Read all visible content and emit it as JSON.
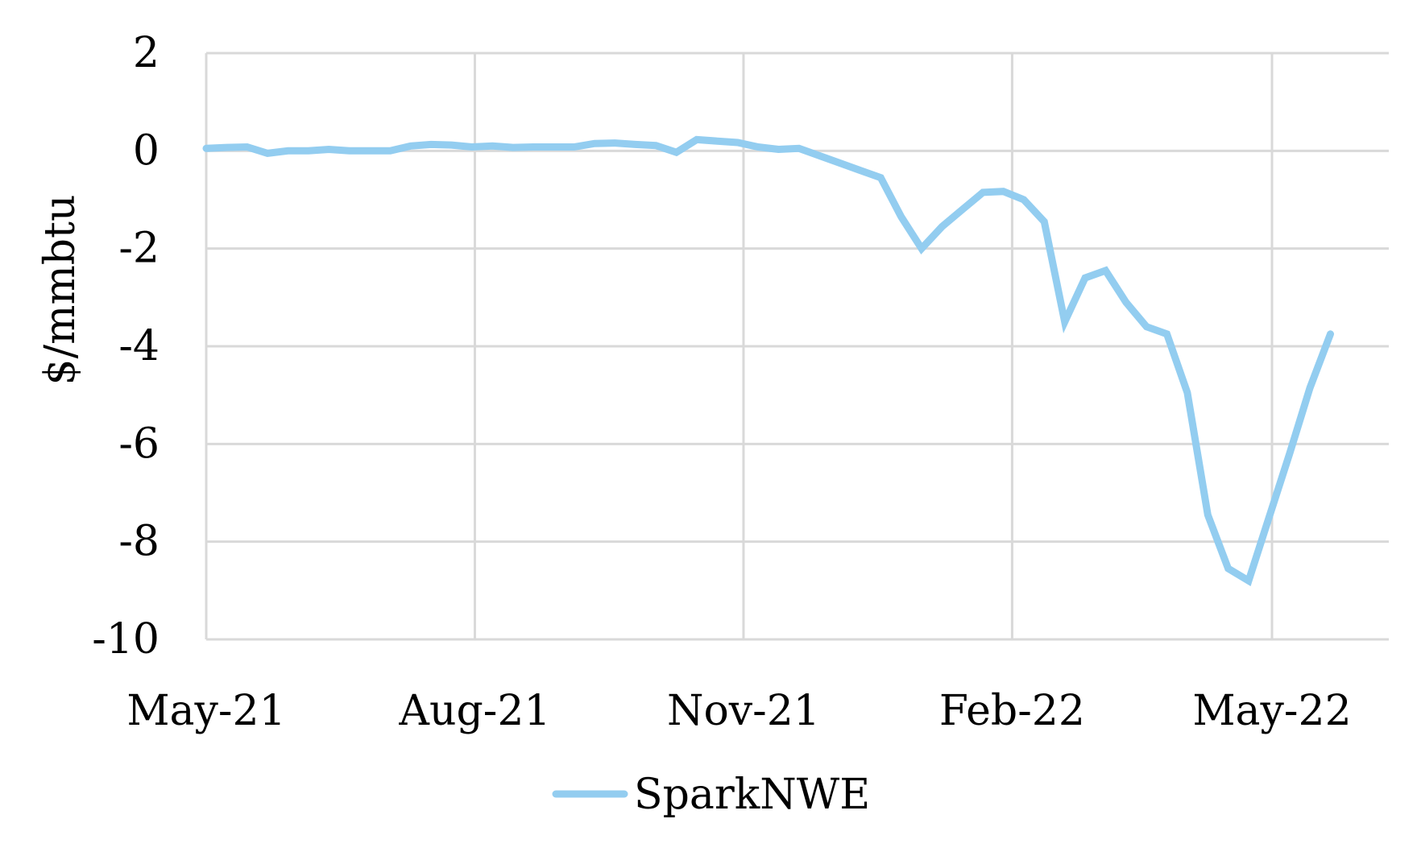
{
  "chart_data": {
    "type": "line",
    "title": "",
    "xlabel": "",
    "ylabel": "$/mmbtu",
    "ylim": [
      -10,
      2
    ],
    "yticks": [
      2,
      0,
      -2,
      -4,
      -6,
      -8,
      -10
    ],
    "xlim": [
      "2021-05-01",
      "2022-06-10"
    ],
    "xticks": [
      {
        "date": "2021-05-01",
        "label": "May-21"
      },
      {
        "date": "2021-08-01",
        "label": "Aug-21"
      },
      {
        "date": "2021-11-01",
        "label": "Nov-21"
      },
      {
        "date": "2022-02-01",
        "label": "Feb-22"
      },
      {
        "date": "2022-05-01",
        "label": "May-22"
      }
    ],
    "grid": true,
    "legend_position": "bottom",
    "series": [
      {
        "name": "SparkNWE",
        "color": "#93cdf0",
        "points": [
          [
            "2021-05-01",
            0.05
          ],
          [
            "2021-05-08",
            0.07
          ],
          [
            "2021-05-15",
            0.08
          ],
          [
            "2021-05-22",
            -0.05
          ],
          [
            "2021-05-29",
            0.0
          ],
          [
            "2021-06-05",
            0.0
          ],
          [
            "2021-06-12",
            0.03
          ],
          [
            "2021-06-19",
            0.0
          ],
          [
            "2021-06-26",
            0.0
          ],
          [
            "2021-07-03",
            0.0
          ],
          [
            "2021-07-10",
            0.1
          ],
          [
            "2021-07-17",
            0.13
          ],
          [
            "2021-07-24",
            0.12
          ],
          [
            "2021-07-31",
            0.08
          ],
          [
            "2021-08-07",
            0.1
          ],
          [
            "2021-08-14",
            0.07
          ],
          [
            "2021-08-21",
            0.08
          ],
          [
            "2021-08-28",
            0.08
          ],
          [
            "2021-09-04",
            0.08
          ],
          [
            "2021-09-11",
            0.15
          ],
          [
            "2021-09-18",
            0.16
          ],
          [
            "2021-09-25",
            0.13
          ],
          [
            "2021-10-02",
            0.11
          ],
          [
            "2021-10-09",
            -0.03
          ],
          [
            "2021-10-16",
            0.23
          ],
          [
            "2021-10-23",
            0.2
          ],
          [
            "2021-10-30",
            0.17
          ],
          [
            "2021-11-06",
            0.08
          ],
          [
            "2021-11-13",
            0.03
          ],
          [
            "2021-11-20",
            0.05
          ],
          [
            "2021-11-27",
            -0.1
          ],
          [
            "2021-12-04",
            -0.25
          ],
          [
            "2021-12-11",
            -0.4
          ],
          [
            "2021-12-18",
            -0.55
          ],
          [
            "2021-12-25",
            -1.35
          ],
          [
            "2022-01-01",
            -2.0
          ],
          [
            "2022-01-08",
            -1.55
          ],
          [
            "2022-01-15",
            -1.2
          ],
          [
            "2022-01-22",
            -0.85
          ],
          [
            "2022-01-29",
            -0.83
          ],
          [
            "2022-02-05",
            -1.0
          ],
          [
            "2022-02-12",
            -1.45
          ],
          [
            "2022-02-19",
            -3.5
          ],
          [
            "2022-02-26",
            -2.6
          ],
          [
            "2022-03-05",
            -2.45
          ],
          [
            "2022-03-12",
            -3.1
          ],
          [
            "2022-03-19",
            -3.6
          ],
          [
            "2022-03-26",
            -3.75
          ],
          [
            "2022-04-02",
            -4.95
          ],
          [
            "2022-04-09",
            -7.45
          ],
          [
            "2022-04-16",
            -8.55
          ],
          [
            "2022-04-23",
            -8.8
          ],
          [
            "2022-04-30",
            -7.5
          ],
          [
            "2022-05-07",
            -6.2
          ],
          [
            "2022-05-14",
            -4.85
          ],
          [
            "2022-05-21",
            -3.75
          ]
        ]
      }
    ]
  }
}
